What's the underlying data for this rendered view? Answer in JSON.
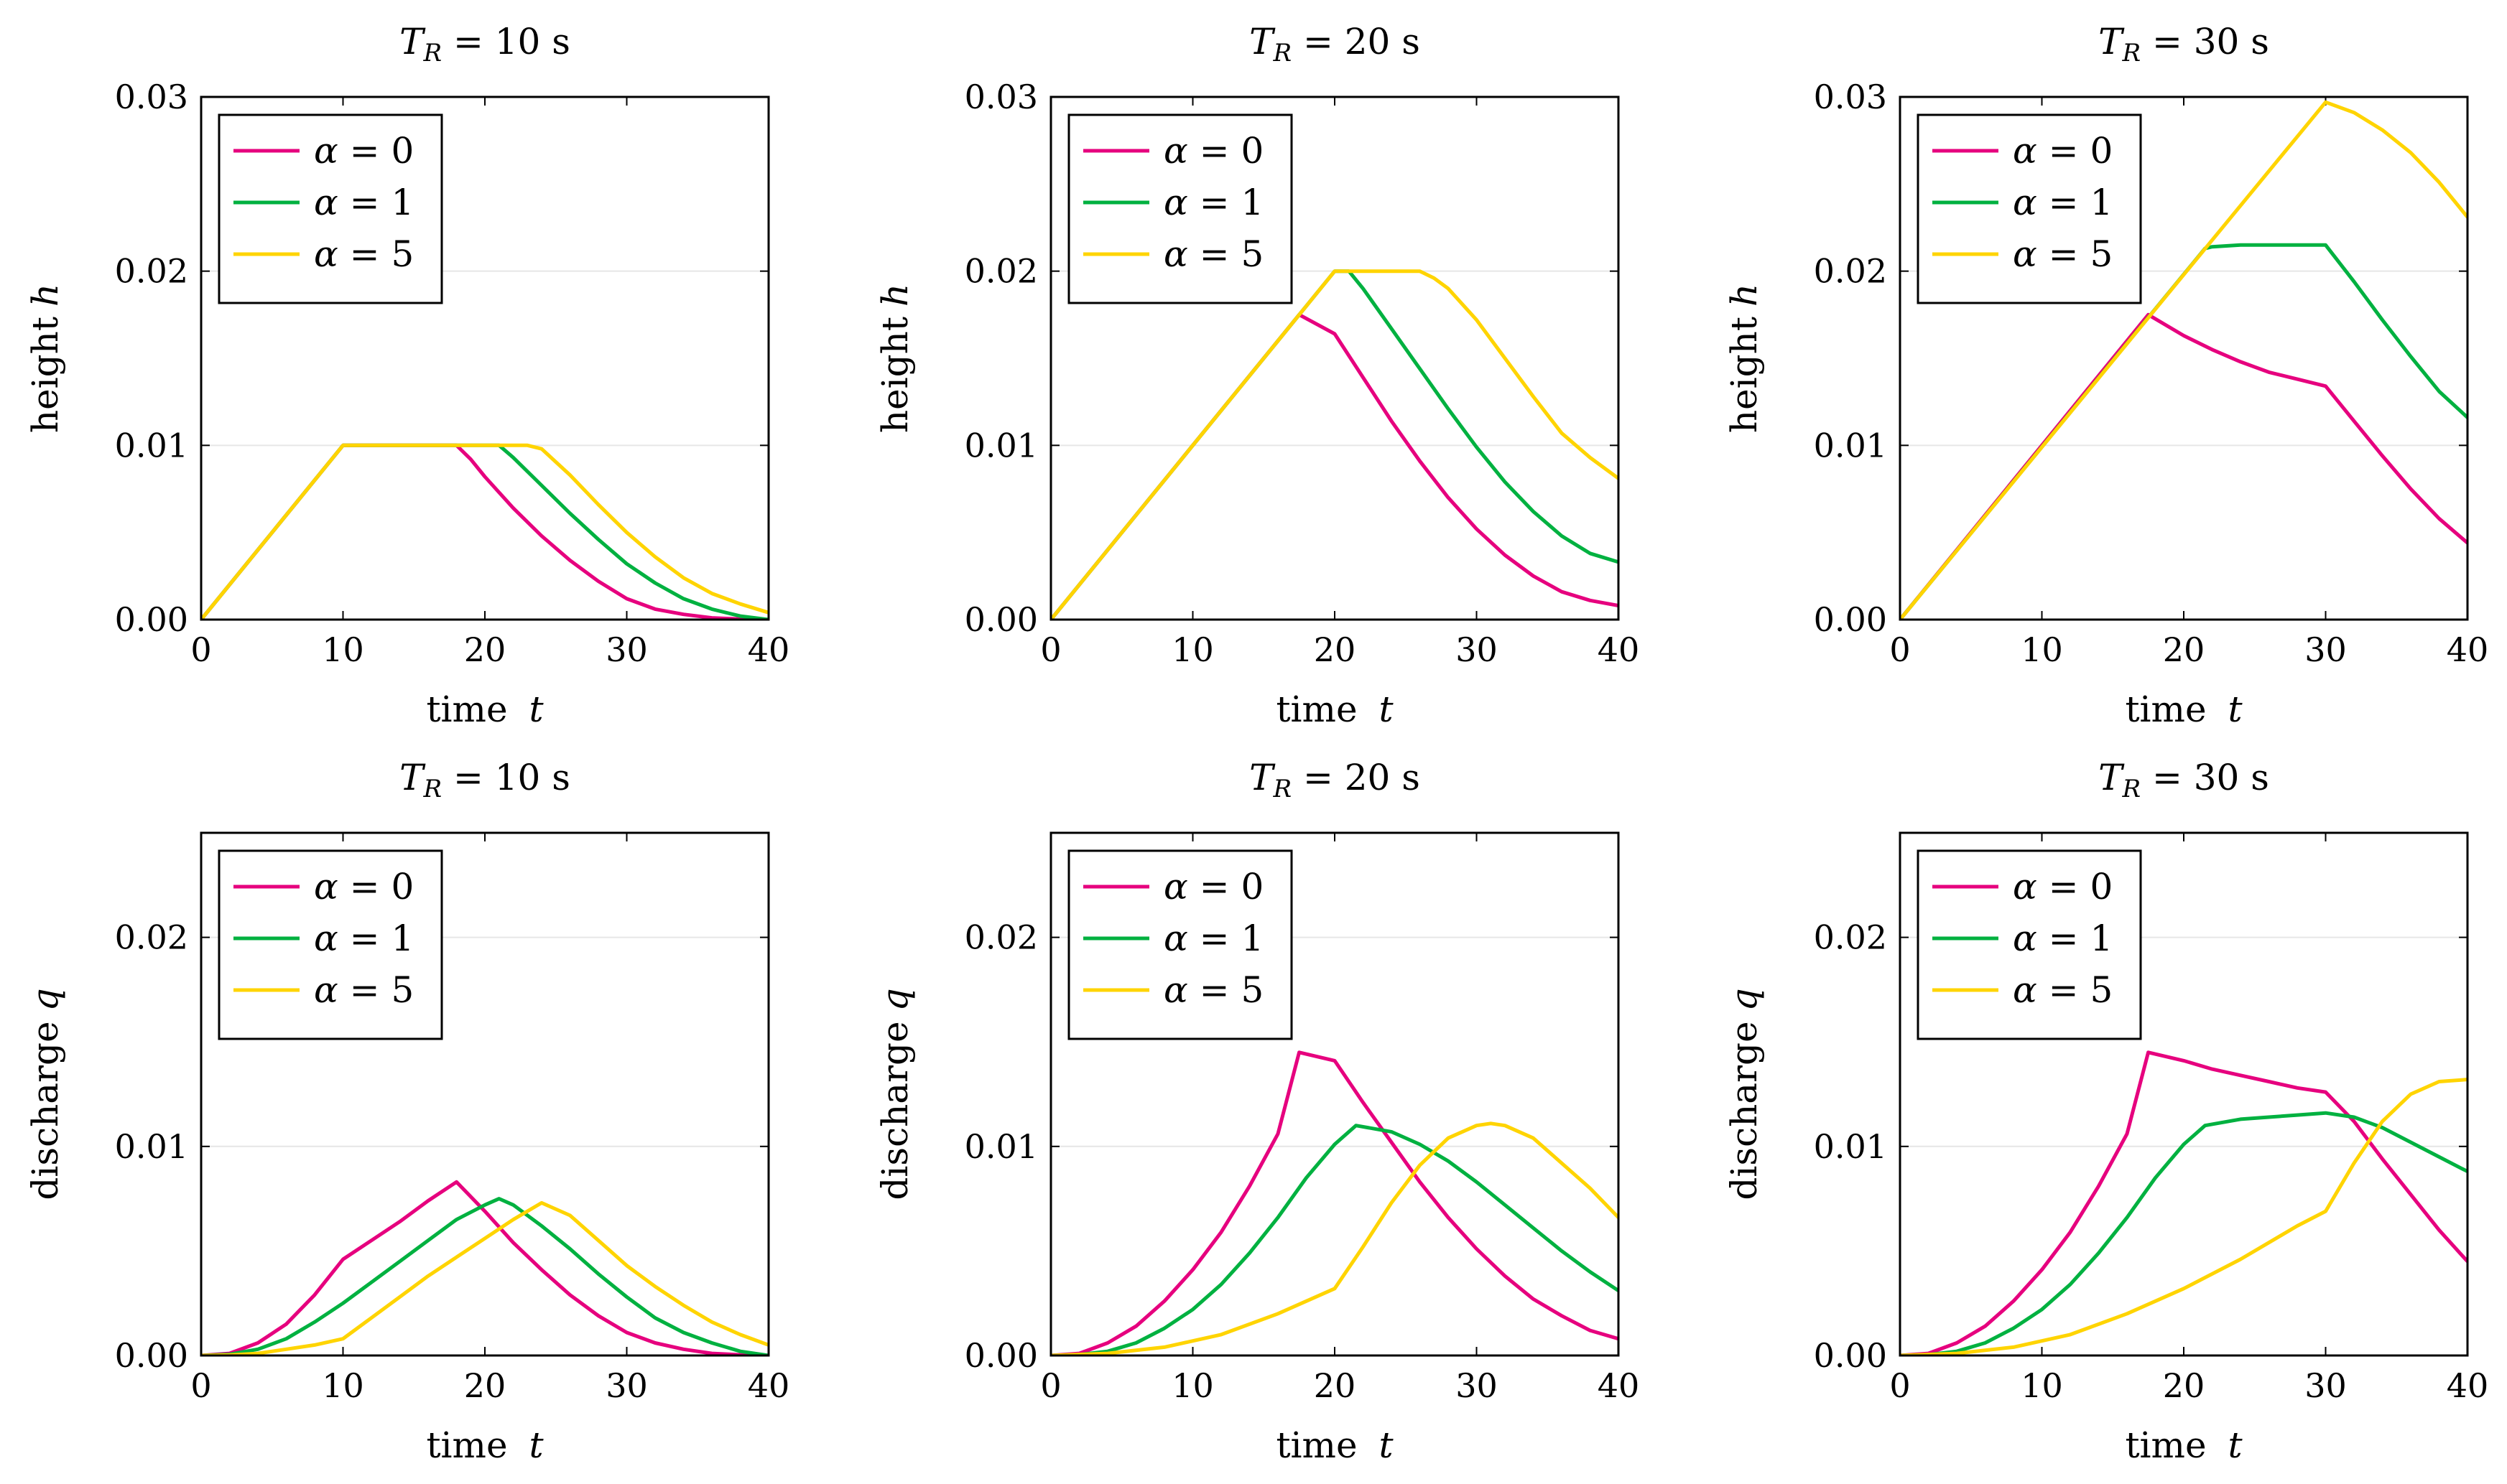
{
  "colors": {
    "alpha0": "#e6007e",
    "alpha1": "#00b140",
    "alpha5": "#ffd400"
  },
  "chart_data": [
    {
      "type": "line",
      "title": "T_R = 10 s",
      "title_parts": {
        "var": "T",
        "sub": "R",
        "rest": " = 10 s"
      },
      "xlabel": "time t",
      "xlabel_parts": {
        "word": "time",
        "var": "t"
      },
      "ylabel": "height h",
      "ylabel_parts": {
        "word": "height",
        "var": "h"
      },
      "xlim": [
        0,
        40
      ],
      "ylim": [
        0,
        0.03
      ],
      "xticks": [
        0,
        10,
        20,
        30,
        40
      ],
      "xtick_labels": [
        "0",
        "10",
        "20",
        "30",
        "40"
      ],
      "yticks": [
        0,
        0.01,
        0.02,
        0.03
      ],
      "ytick_labels": [
        "0.00",
        "0.01",
        "0.02",
        "0.03"
      ],
      "legend": "top-left",
      "series": [
        {
          "name": "α = 0",
          "greek": "α",
          "rest": " = 0",
          "color_key": "alpha0",
          "x": [
            0,
            10,
            18,
            19,
            20,
            22,
            24,
            26,
            28,
            30,
            32,
            34,
            36,
            38,
            40
          ],
          "y": [
            0,
            0.01,
            0.01,
            0.0092,
            0.0082,
            0.0064,
            0.0048,
            0.0034,
            0.0022,
            0.0012,
            0.0006,
            0.0003,
            0.0001,
            3e-05,
            0
          ]
        },
        {
          "name": "α = 1",
          "greek": "α",
          "rest": " = 1",
          "color_key": "alpha1",
          "x": [
            0,
            10,
            21,
            22,
            24,
            26,
            28,
            30,
            32,
            34,
            36,
            38,
            40
          ],
          "y": [
            0,
            0.01,
            0.01,
            0.0093,
            0.0077,
            0.0061,
            0.0046,
            0.0032,
            0.0021,
            0.0012,
            0.0006,
            0.0002,
            0
          ]
        },
        {
          "name": "α = 5",
          "greek": "α",
          "rest": " = 5",
          "color_key": "alpha5",
          "x": [
            0,
            10,
            23,
            24,
            26,
            28,
            30,
            32,
            34,
            36,
            38,
            40
          ],
          "y": [
            0,
            0.01,
            0.01,
            0.0098,
            0.0083,
            0.0066,
            0.005,
            0.0036,
            0.0024,
            0.0015,
            0.0009,
            0.0004
          ]
        }
      ]
    },
    {
      "type": "line",
      "title": "T_R = 20 s",
      "title_parts": {
        "var": "T",
        "sub": "R",
        "rest": " = 20 s"
      },
      "xlabel": "time t",
      "xlabel_parts": {
        "word": "time",
        "var": "t"
      },
      "ylabel": "height h",
      "ylabel_parts": {
        "word": "height",
        "var": "h"
      },
      "xlim": [
        0,
        40
      ],
      "ylim": [
        0,
        0.03
      ],
      "xticks": [
        0,
        10,
        20,
        30,
        40
      ],
      "xtick_labels": [
        "0",
        "10",
        "20",
        "30",
        "40"
      ],
      "yticks": [
        0,
        0.01,
        0.02,
        0.03
      ],
      "ytick_labels": [
        "0.00",
        "0.01",
        "0.02",
        "0.03"
      ],
      "legend": "top-left",
      "series": [
        {
          "name": "α = 0",
          "greek": "α",
          "rest": " = 0",
          "color_key": "alpha0",
          "x": [
            0,
            17.5,
            20,
            22,
            24,
            26,
            28,
            30,
            32,
            34,
            36,
            38,
            40
          ],
          "y": [
            0,
            0.0175,
            0.0164,
            0.0139,
            0.0114,
            0.0091,
            0.007,
            0.0052,
            0.0037,
            0.0025,
            0.0016,
            0.0011,
            0.0008
          ]
        },
        {
          "name": "α = 1",
          "greek": "α",
          "rest": " = 1",
          "color_key": "alpha1",
          "x": [
            0,
            20,
            21,
            22,
            24,
            26,
            28,
            30,
            32,
            34,
            36,
            38,
            40
          ],
          "y": [
            0,
            0.02,
            0.02,
            0.019,
            0.0167,
            0.0144,
            0.0121,
            0.0099,
            0.0079,
            0.0062,
            0.0048,
            0.0038,
            0.0033
          ]
        },
        {
          "name": "α = 5",
          "greek": "α",
          "rest": " = 5",
          "color_key": "alpha5",
          "x": [
            0,
            20,
            26,
            27,
            28,
            30,
            32,
            34,
            36,
            38,
            40
          ],
          "y": [
            0,
            0.02,
            0.02,
            0.0196,
            0.019,
            0.0172,
            0.015,
            0.0128,
            0.0107,
            0.0093,
            0.0081
          ]
        }
      ]
    },
    {
      "type": "line",
      "title": "T_R = 30 s",
      "title_parts": {
        "var": "T",
        "sub": "R",
        "rest": " = 30 s"
      },
      "xlabel": "time t",
      "xlabel_parts": {
        "word": "time",
        "var": "t"
      },
      "ylabel": "height h",
      "ylabel_parts": {
        "word": "height",
        "var": "h"
      },
      "xlim": [
        0,
        40
      ],
      "ylim": [
        0,
        0.03
      ],
      "xticks": [
        0,
        10,
        20,
        30,
        40
      ],
      "xtick_labels": [
        "0",
        "10",
        "20",
        "30",
        "40"
      ],
      "yticks": [
        0,
        0.01,
        0.02,
        0.03
      ],
      "ytick_labels": [
        "0.00",
        "0.01",
        "0.02",
        "0.03"
      ],
      "legend": "top-left",
      "series": [
        {
          "name": "α = 0",
          "greek": "α",
          "rest": " = 0",
          "color_key": "alpha0",
          "x": [
            0,
            17.5,
            20,
            22,
            24,
            26,
            28,
            30,
            32,
            34,
            36,
            38,
            40
          ],
          "y": [
            0,
            0.0175,
            0.0163,
            0.0155,
            0.0148,
            0.0142,
            0.0138,
            0.0134,
            0.0114,
            0.0094,
            0.0075,
            0.0058,
            0.0044
          ]
        },
        {
          "name": "α = 1",
          "greek": "α",
          "rest": " = 1",
          "color_key": "alpha1",
          "x": [
            0,
            21.5,
            22,
            24,
            26,
            28,
            30,
            32,
            34,
            36,
            38,
            40
          ],
          "y": [
            0,
            0.0213,
            0.0214,
            0.0215,
            0.0215,
            0.0215,
            0.0215,
            0.0194,
            0.0172,
            0.0151,
            0.0131,
            0.0116
          ]
        },
        {
          "name": "α = 5",
          "greek": "α",
          "rest": " = 5",
          "color_key": "alpha5",
          "x": [
            0,
            30,
            32,
            34,
            36,
            38,
            40
          ],
          "y": [
            0,
            0.0297,
            0.0291,
            0.0281,
            0.0268,
            0.0251,
            0.0231
          ]
        }
      ]
    },
    {
      "type": "line",
      "title": "T_R = 10 s",
      "title_parts": {
        "var": "T",
        "sub": "R",
        "rest": " = 10 s"
      },
      "xlabel": "time t",
      "xlabel_parts": {
        "word": "time",
        "var": "t"
      },
      "ylabel": "discharge q",
      "ylabel_parts": {
        "word": "discharge",
        "var": "q"
      },
      "xlim": [
        0,
        40
      ],
      "ylim": [
        0,
        0.025
      ],
      "xticks": [
        0,
        10,
        20,
        30,
        40
      ],
      "xtick_labels": [
        "0",
        "10",
        "20",
        "30",
        "40"
      ],
      "yticks": [
        0,
        0.01,
        0.02
      ],
      "ytick_labels": [
        "0.00",
        "0.01",
        "0.02"
      ],
      "legend": "top-left",
      "series": [
        {
          "name": "α = 0",
          "greek": "α",
          "rest": " = 0",
          "color_key": "alpha0",
          "x": [
            0,
            2,
            4,
            6,
            8,
            10,
            12,
            14,
            16,
            18,
            20,
            22,
            24,
            26,
            28,
            30,
            32,
            34,
            36,
            38,
            40
          ],
          "y": [
            0,
            0.0001,
            0.0006,
            0.0015,
            0.0029,
            0.0046,
            0.0055,
            0.0064,
            0.0074,
            0.0083,
            0.0069,
            0.0054,
            0.0041,
            0.0029,
            0.0019,
            0.0011,
            0.0006,
            0.0003,
            0.0001,
            3e-05,
            0
          ]
        },
        {
          "name": "α = 1",
          "greek": "α",
          "rest": " = 1",
          "color_key": "alpha1",
          "x": [
            0,
            2,
            4,
            6,
            8,
            10,
            12,
            14,
            16,
            18,
            20,
            21,
            22,
            24,
            26,
            28,
            30,
            32,
            34,
            36,
            38,
            40
          ],
          "y": [
            0,
            5e-05,
            0.0003,
            0.0008,
            0.0016,
            0.0025,
            0.0035,
            0.0045,
            0.0055,
            0.0065,
            0.0072,
            0.0075,
            0.0072,
            0.0062,
            0.0051,
            0.0039,
            0.0028,
            0.0018,
            0.0011,
            0.0006,
            0.0002,
            0
          ]
        },
        {
          "name": "α = 5",
          "greek": "α",
          "rest": " = 5",
          "color_key": "alpha5",
          "x": [
            0,
            2,
            4,
            6,
            8,
            10,
            12,
            14,
            16,
            18,
            20,
            22,
            24,
            26,
            28,
            30,
            32,
            34,
            36,
            38,
            40
          ],
          "y": [
            0,
            2e-05,
            0.0001,
            0.0003,
            0.0005,
            0.0008,
            0.0018,
            0.0028,
            0.0038,
            0.0047,
            0.0056,
            0.0065,
            0.0073,
            0.0067,
            0.0055,
            0.0043,
            0.0033,
            0.0024,
            0.0016,
            0.001,
            0.0005
          ]
        }
      ]
    },
    {
      "type": "line",
      "title": "T_R = 20 s",
      "title_parts": {
        "var": "T",
        "sub": "R",
        "rest": " = 20 s"
      },
      "xlabel": "time t",
      "xlabel_parts": {
        "word": "time",
        "var": "t"
      },
      "ylabel": "discharge q",
      "ylabel_parts": {
        "word": "discharge",
        "var": "q"
      },
      "xlim": [
        0,
        40
      ],
      "ylim": [
        0,
        0.025
      ],
      "xticks": [
        0,
        10,
        20,
        30,
        40
      ],
      "xtick_labels": [
        "0",
        "10",
        "20",
        "30",
        "40"
      ],
      "yticks": [
        0,
        0.01,
        0.02
      ],
      "ytick_labels": [
        "0.00",
        "0.01",
        "0.02"
      ],
      "legend": "top-left",
      "series": [
        {
          "name": "α = 0",
          "greek": "α",
          "rest": " = 0",
          "color_key": "alpha0",
          "x": [
            0,
            2,
            4,
            6,
            8,
            10,
            12,
            14,
            16,
            17.5,
            20,
            22,
            24,
            26,
            28,
            30,
            32,
            34,
            36,
            38,
            40
          ],
          "y": [
            0,
            0.0001,
            0.0006,
            0.0014,
            0.0026,
            0.0041,
            0.0059,
            0.0081,
            0.0106,
            0.0145,
            0.0141,
            0.0121,
            0.0102,
            0.0083,
            0.0066,
            0.0051,
            0.0038,
            0.0027,
            0.0019,
            0.0012,
            0.0008
          ]
        },
        {
          "name": "α = 1",
          "greek": "α",
          "rest": " = 1",
          "color_key": "alpha1",
          "x": [
            0,
            2,
            4,
            6,
            8,
            10,
            12,
            14,
            16,
            18,
            20,
            21.5,
            24,
            26,
            28,
            30,
            32,
            34,
            36,
            38,
            40
          ],
          "y": [
            0,
            4e-05,
            0.0002,
            0.0006,
            0.0013,
            0.0022,
            0.0034,
            0.0049,
            0.0066,
            0.0085,
            0.0101,
            0.011,
            0.0107,
            0.0101,
            0.0093,
            0.0083,
            0.0072,
            0.0061,
            0.005,
            0.004,
            0.0031
          ]
        },
        {
          "name": "α = 5",
          "greek": "α",
          "rest": " = 5",
          "color_key": "alpha5",
          "x": [
            0,
            4,
            8,
            12,
            16,
            20,
            22,
            24,
            26,
            28,
            30,
            31,
            32,
            34,
            36,
            38,
            40
          ],
          "y": [
            0,
            0.0001,
            0.0004,
            0.001,
            0.002,
            0.0032,
            0.0052,
            0.0073,
            0.0091,
            0.0104,
            0.011,
            0.0111,
            0.011,
            0.0104,
            0.0092,
            0.008,
            0.0066
          ]
        }
      ]
    },
    {
      "type": "line",
      "title": "T_R = 30 s",
      "title_parts": {
        "var": "T",
        "sub": "R",
        "rest": " = 30 s"
      },
      "xlabel": "time t",
      "xlabel_parts": {
        "word": "time",
        "var": "t"
      },
      "ylabel": "discharge q",
      "ylabel_parts": {
        "word": "discharge",
        "var": "q"
      },
      "xlim": [
        0,
        40
      ],
      "ylim": [
        0,
        0.025
      ],
      "xticks": [
        0,
        10,
        20,
        30,
        40
      ],
      "xtick_labels": [
        "0",
        "10",
        "20",
        "30",
        "40"
      ],
      "yticks": [
        0,
        0.01,
        0.02
      ],
      "ytick_labels": [
        "0.00",
        "0.01",
        "0.02"
      ],
      "legend": "top-left",
      "series": [
        {
          "name": "α = 0",
          "greek": "α",
          "rest": " = 0",
          "color_key": "alpha0",
          "x": [
            0,
            2,
            4,
            6,
            8,
            10,
            12,
            14,
            16,
            17.5,
            20,
            22,
            24,
            26,
            28,
            30,
            32,
            34,
            36,
            38,
            40
          ],
          "y": [
            0,
            0.0001,
            0.0006,
            0.0014,
            0.0026,
            0.0041,
            0.0059,
            0.0081,
            0.0106,
            0.0145,
            0.0141,
            0.0137,
            0.0134,
            0.0131,
            0.0128,
            0.0126,
            0.0112,
            0.0094,
            0.0077,
            0.006,
            0.0045
          ]
        },
        {
          "name": "α = 1",
          "greek": "α",
          "rest": " = 1",
          "color_key": "alpha1",
          "x": [
            0,
            2,
            4,
            6,
            8,
            10,
            12,
            14,
            16,
            18,
            20,
            21.5,
            24,
            26,
            28,
            30,
            32,
            34,
            36,
            38,
            40
          ],
          "y": [
            0,
            4e-05,
            0.0002,
            0.0006,
            0.0013,
            0.0022,
            0.0034,
            0.0049,
            0.0066,
            0.0085,
            0.0101,
            0.011,
            0.0113,
            0.0114,
            0.0115,
            0.0116,
            0.0114,
            0.0109,
            0.0102,
            0.0095,
            0.0088
          ]
        },
        {
          "name": "α = 5",
          "greek": "α",
          "rest": " = 5",
          "color_key": "alpha5",
          "x": [
            0,
            4,
            8,
            12,
            16,
            20,
            24,
            28,
            30,
            32,
            34,
            36,
            38,
            40
          ],
          "y": [
            0,
            0.0001,
            0.0004,
            0.001,
            0.002,
            0.0032,
            0.0046,
            0.0062,
            0.0069,
            0.0092,
            0.0112,
            0.0125,
            0.0131,
            0.0132
          ]
        }
      ]
    }
  ]
}
